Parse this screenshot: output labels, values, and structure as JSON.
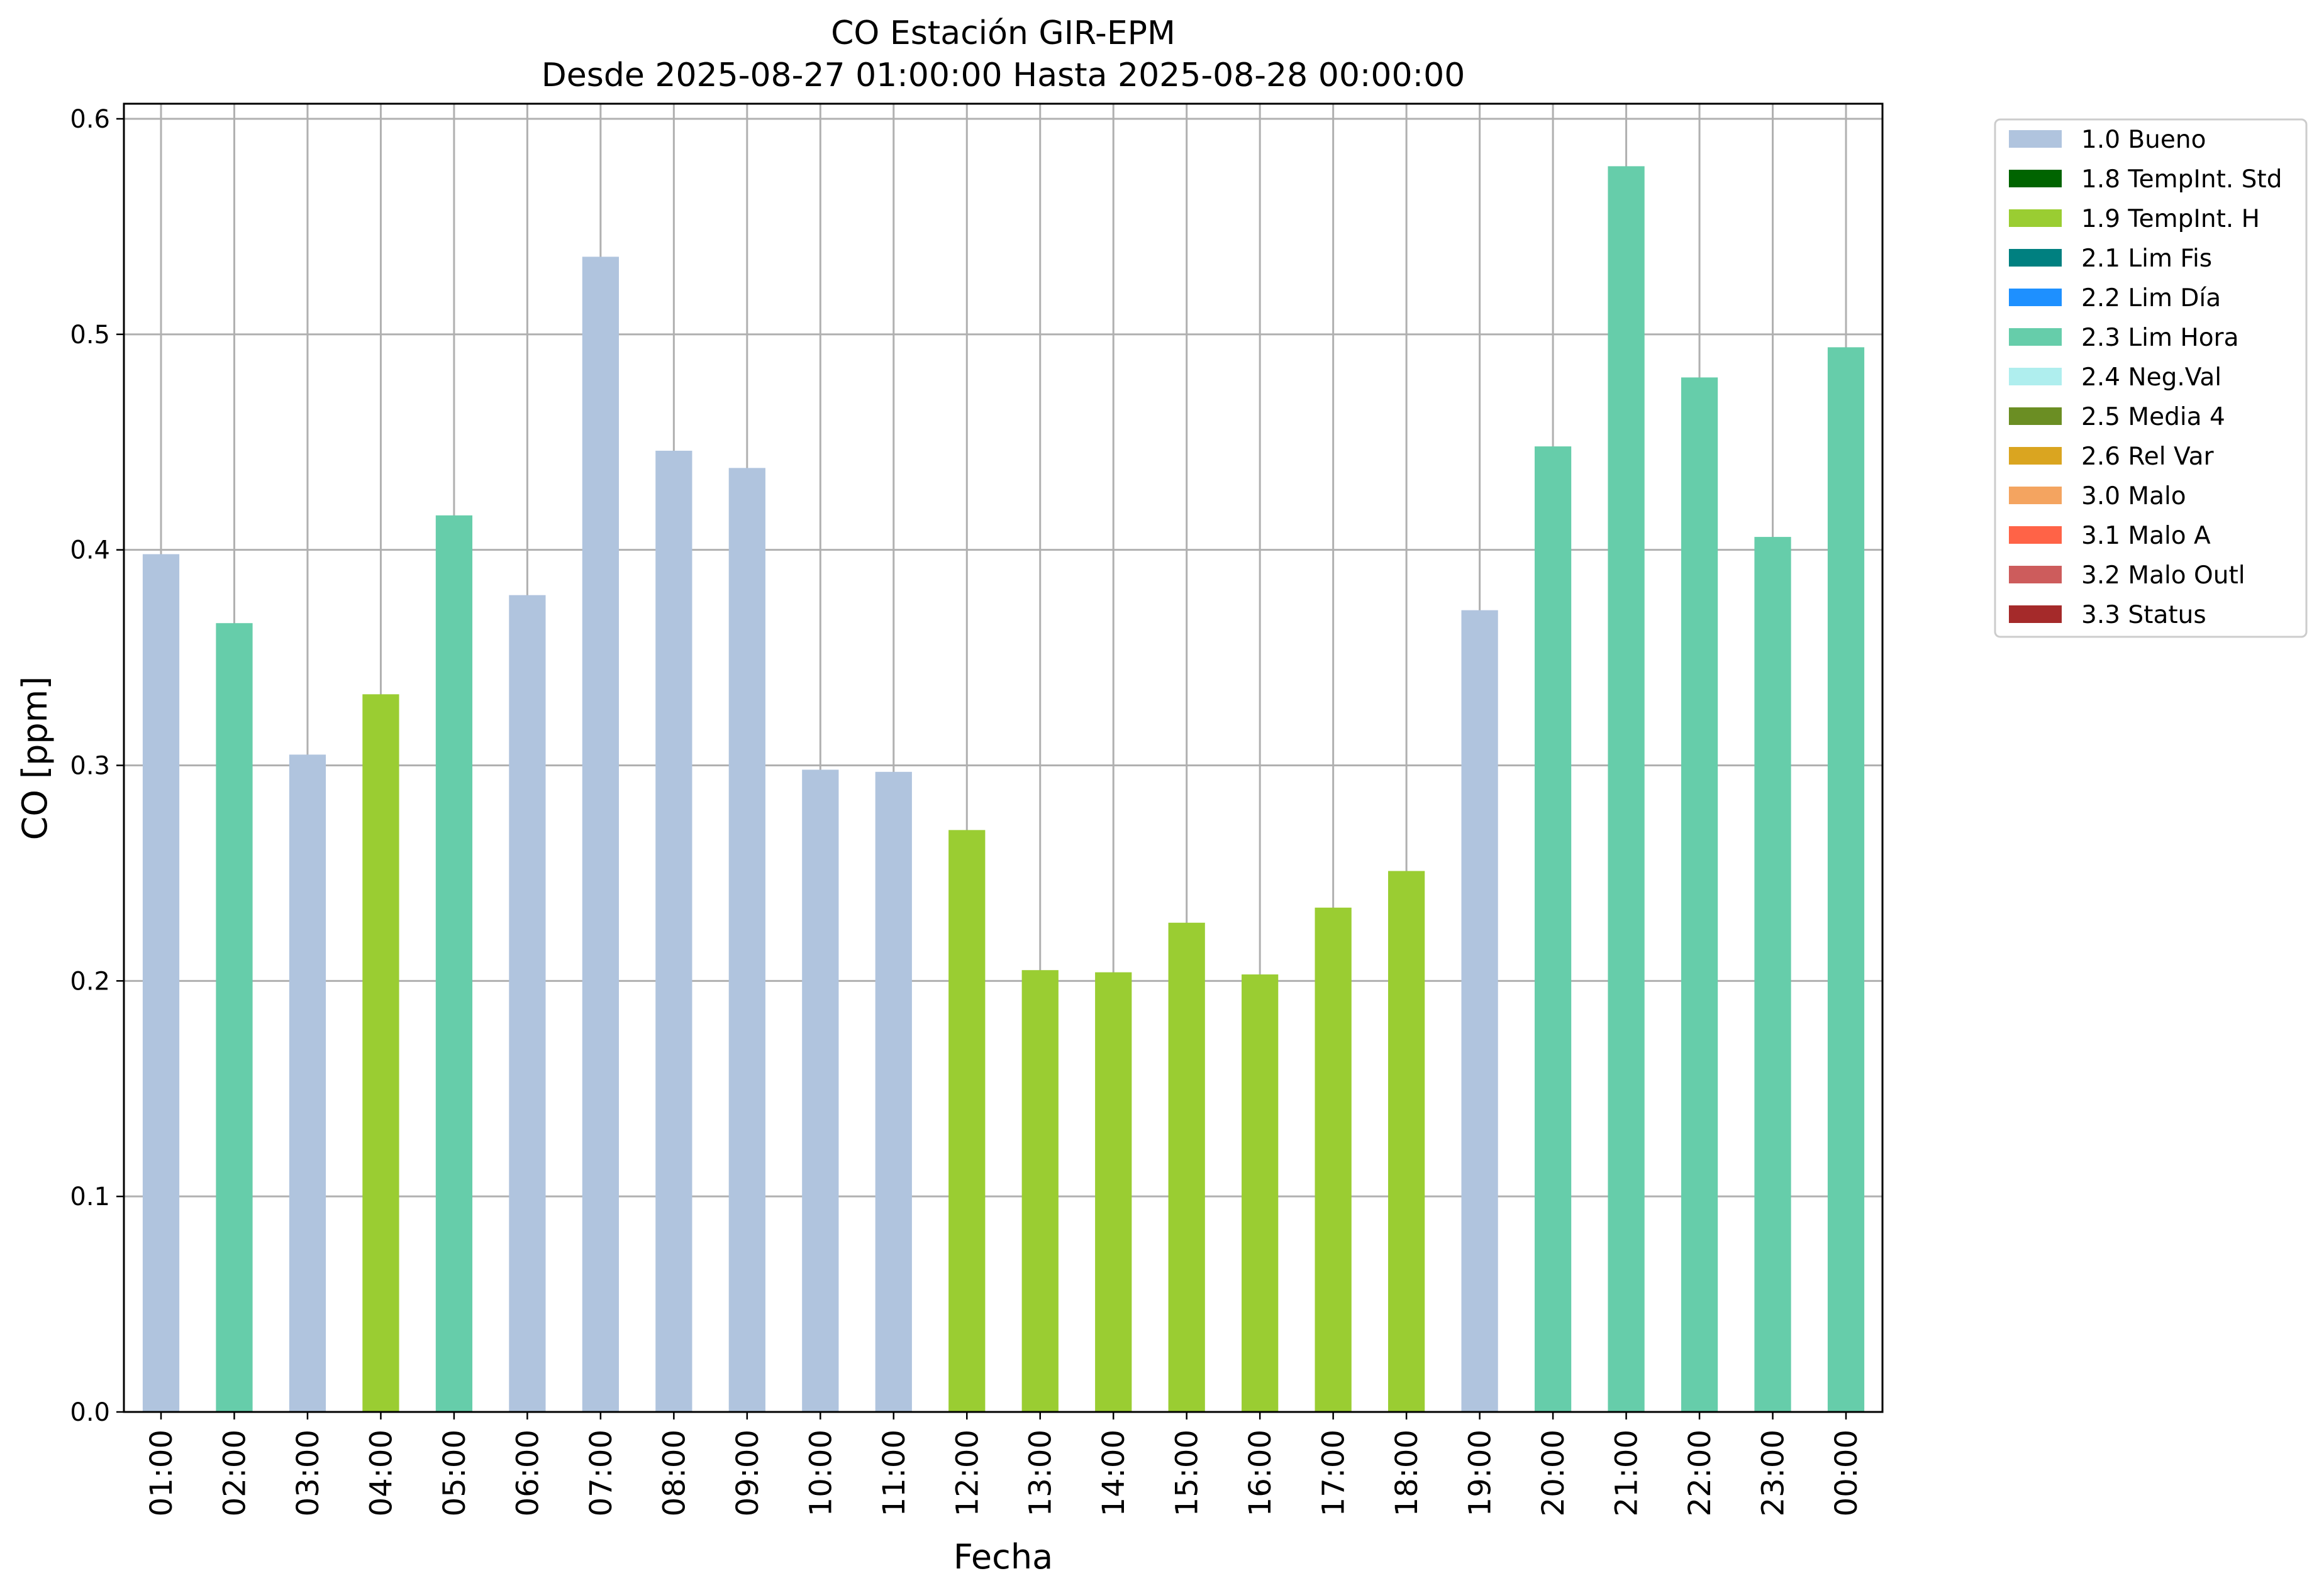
{
  "chart_data": {
    "type": "bar",
    "title": "CO Estación GIR-EPM",
    "subtitle": "Desde 2025-08-27 01:00:00 Hasta 2025-08-28 00:00:00",
    "xlabel": "Fecha",
    "ylabel": "CO [ppm]",
    "ylim": [
      0,
      0.607
    ],
    "yticks": [
      "0.0",
      "0.1",
      "0.2",
      "0.3",
      "0.4",
      "0.5",
      "0.6"
    ],
    "grid": true,
    "legend_position": "outside-top-right",
    "categories": [
      "01:00",
      "02:00",
      "03:00",
      "04:00",
      "05:00",
      "06:00",
      "07:00",
      "08:00",
      "09:00",
      "10:00",
      "11:00",
      "12:00",
      "13:00",
      "14:00",
      "15:00",
      "16:00",
      "17:00",
      "18:00",
      "19:00",
      "20:00",
      "21:00",
      "22:00",
      "23:00",
      "00:00"
    ],
    "values": [
      0.398,
      0.366,
      0.305,
      0.333,
      0.416,
      0.379,
      0.536,
      0.446,
      0.438,
      0.298,
      0.297,
      0.27,
      0.205,
      0.204,
      0.227,
      0.203,
      0.234,
      0.251,
      0.372,
      0.448,
      0.578,
      0.48,
      0.406,
      0.494
    ],
    "flags": [
      "1.0 Bueno",
      "2.3 Lim Hora",
      "1.0 Bueno",
      "1.9 TempInt. H",
      "2.3 Lim Hora",
      "1.0 Bueno",
      "1.0 Bueno",
      "1.0 Bueno",
      "1.0 Bueno",
      "1.0 Bueno",
      "1.0 Bueno",
      "1.9 TempInt. H",
      "1.9 TempInt. H",
      "1.9 TempInt. H",
      "1.9 TempInt. H",
      "1.9 TempInt. H",
      "1.9 TempInt. H",
      "1.9 TempInt. H",
      "1.0 Bueno",
      "2.3 Lim Hora",
      "2.3 Lim Hora",
      "2.3 Lim Hora",
      "2.3 Lim Hora",
      "2.3 Lim Hora"
    ],
    "legend": [
      {
        "label": "1.0 Bueno",
        "color": "#b0c4de"
      },
      {
        "label": "1.8 TempInt. Std",
        "color": "#006400"
      },
      {
        "label": "1.9 TempInt. H",
        "color": "#9acd32"
      },
      {
        "label": "2.1 Lim Fis",
        "color": "#008080"
      },
      {
        "label": "2.2 Lim Día",
        "color": "#1e90ff"
      },
      {
        "label": "2.3 Lim Hora",
        "color": "#66cdaa"
      },
      {
        "label": "2.4 Neg.Val",
        "color": "#afeeee"
      },
      {
        "label": "2.5 Media 4",
        "color": "#6b8e23"
      },
      {
        "label": "2.6 Rel Var",
        "color": "#daa520"
      },
      {
        "label": "3.0 Malo",
        "color": "#f4a460"
      },
      {
        "label": "3.1 Malo A",
        "color": "#ff6347"
      },
      {
        "label": "3.2 Malo Outl",
        "color": "#cd5c5c"
      },
      {
        "label": "3.3 Status",
        "color": "#a52a2a"
      }
    ]
  }
}
